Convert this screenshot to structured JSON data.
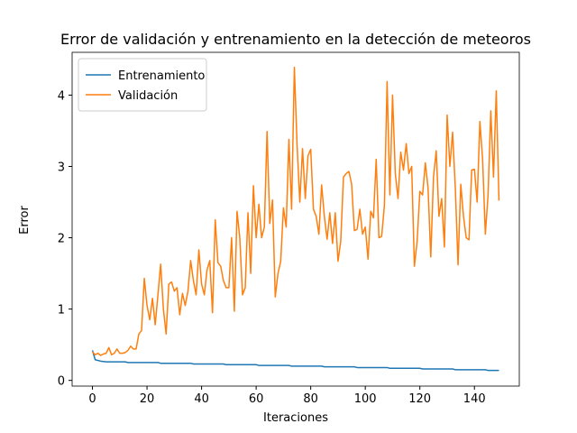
{
  "chart_data": {
    "type": "line",
    "title": "Error de validación y entrenamiento en la detección de meteoros",
    "xlabel": "Iteraciones",
    "ylabel": "Error",
    "x": [
      0,
      1,
      2,
      3,
      4,
      5,
      6,
      7,
      8,
      9,
      10,
      11,
      12,
      13,
      14,
      15,
      16,
      17,
      18,
      19,
      20,
      21,
      22,
      23,
      24,
      25,
      26,
      27,
      28,
      29,
      30,
      31,
      32,
      33,
      34,
      35,
      36,
      37,
      38,
      39,
      40,
      41,
      42,
      43,
      44,
      45,
      46,
      47,
      48,
      49,
      50,
      51,
      52,
      53,
      54,
      55,
      56,
      57,
      58,
      59,
      60,
      61,
      62,
      63,
      64,
      65,
      66,
      67,
      68,
      69,
      70,
      71,
      72,
      73,
      74,
      75,
      76,
      77,
      78,
      79,
      80,
      81,
      82,
      83,
      84,
      85,
      86,
      87,
      88,
      89,
      90,
      91,
      92,
      93,
      94,
      95,
      96,
      97,
      98,
      99,
      100,
      101,
      102,
      103,
      104,
      105,
      106,
      107,
      108,
      109,
      110,
      111,
      112,
      113,
      114,
      115,
      116,
      117,
      118,
      119,
      120,
      121,
      122,
      123,
      124,
      125,
      126,
      127,
      128,
      129,
      130,
      131,
      132,
      133,
      134,
      135,
      136,
      137,
      138,
      139,
      140,
      141,
      142,
      143,
      144,
      145,
      146,
      147,
      148,
      149
    ],
    "series": [
      {
        "name": "Entrenamiento",
        "color": "#1f77b4",
        "values": [
          0.42,
          0.29,
          0.28,
          0.27,
          0.265,
          0.26,
          0.26,
          0.26,
          0.26,
          0.26,
          0.26,
          0.26,
          0.26,
          0.25,
          0.25,
          0.25,
          0.25,
          0.25,
          0.25,
          0.25,
          0.25,
          0.25,
          0.25,
          0.25,
          0.25,
          0.24,
          0.24,
          0.24,
          0.24,
          0.24,
          0.24,
          0.24,
          0.24,
          0.24,
          0.24,
          0.24,
          0.24,
          0.23,
          0.23,
          0.23,
          0.23,
          0.23,
          0.23,
          0.23,
          0.23,
          0.23,
          0.23,
          0.23,
          0.23,
          0.22,
          0.22,
          0.22,
          0.22,
          0.22,
          0.22,
          0.22,
          0.22,
          0.22,
          0.22,
          0.22,
          0.22,
          0.21,
          0.21,
          0.21,
          0.21,
          0.21,
          0.21,
          0.21,
          0.21,
          0.21,
          0.21,
          0.21,
          0.21,
          0.2,
          0.2,
          0.2,
          0.2,
          0.2,
          0.2,
          0.2,
          0.2,
          0.2,
          0.2,
          0.2,
          0.2,
          0.19,
          0.19,
          0.19,
          0.19,
          0.19,
          0.19,
          0.19,
          0.19,
          0.19,
          0.19,
          0.19,
          0.19,
          0.18,
          0.18,
          0.18,
          0.18,
          0.18,
          0.18,
          0.18,
          0.18,
          0.18,
          0.18,
          0.18,
          0.18,
          0.17,
          0.17,
          0.17,
          0.17,
          0.17,
          0.17,
          0.17,
          0.17,
          0.17,
          0.17,
          0.17,
          0.17,
          0.16,
          0.16,
          0.16,
          0.16,
          0.16,
          0.16,
          0.16,
          0.16,
          0.16,
          0.16,
          0.16,
          0.16,
          0.15,
          0.15,
          0.15,
          0.15,
          0.15,
          0.15,
          0.15,
          0.15,
          0.15,
          0.15,
          0.15,
          0.15,
          0.14,
          0.14,
          0.14,
          0.14,
          0.14
        ]
      },
      {
        "name": "Validación",
        "color": "#ff7f0e",
        "values": [
          0.4,
          0.36,
          0.38,
          0.35,
          0.37,
          0.38,
          0.46,
          0.36,
          0.38,
          0.44,
          0.38,
          0.38,
          0.39,
          0.42,
          0.48,
          0.44,
          0.44,
          0.65,
          0.7,
          1.43,
          1.05,
          0.85,
          1.15,
          0.78,
          1.2,
          1.63,
          1.0,
          0.65,
          1.35,
          1.38,
          1.25,
          1.3,
          0.92,
          1.22,
          1.05,
          1.25,
          1.68,
          1.4,
          1.2,
          1.83,
          1.35,
          1.2,
          1.55,
          1.68,
          0.95,
          2.25,
          1.65,
          1.6,
          1.4,
          1.3,
          1.3,
          2.0,
          0.97,
          2.37,
          2.0,
          1.2,
          1.3,
          2.35,
          1.5,
          2.73,
          2.0,
          2.47,
          2.0,
          2.15,
          3.49,
          2.2,
          2.53,
          1.17,
          1.5,
          1.67,
          2.42,
          2.15,
          3.38,
          2.4,
          4.39,
          3.3,
          2.5,
          3.25,
          2.55,
          3.15,
          3.24,
          2.4,
          2.3,
          2.05,
          2.74,
          2.3,
          1.98,
          2.35,
          1.92,
          2.35,
          1.67,
          1.95,
          2.85,
          2.9,
          2.93,
          2.75,
          2.1,
          2.12,
          2.4,
          2.05,
          2.15,
          1.7,
          2.37,
          2.28,
          3.1,
          2.0,
          2.02,
          2.45,
          4.19,
          2.6,
          4.0,
          2.9,
          2.55,
          3.2,
          2.95,
          3.32,
          2.9,
          3.0,
          1.6,
          1.95,
          2.65,
          2.6,
          3.05,
          2.7,
          1.73,
          2.85,
          3.22,
          2.3,
          2.55,
          1.87,
          3.72,
          3.0,
          3.48,
          2.7,
          1.62,
          2.75,
          2.3,
          2.0,
          1.97,
          2.95,
          2.96,
          2.5,
          3.63,
          3.1,
          2.05,
          2.6,
          3.78,
          2.85,
          4.06,
          2.52
        ]
      }
    ],
    "xlim": [
      -7.45,
      156.45
    ],
    "xticks": [
      0,
      20,
      40,
      60,
      80,
      100,
      120,
      140
    ],
    "ylim": [
      -0.08,
      4.6
    ],
    "yticks": [
      0,
      1,
      2,
      3,
      4
    ],
    "legend": "upper left"
  }
}
